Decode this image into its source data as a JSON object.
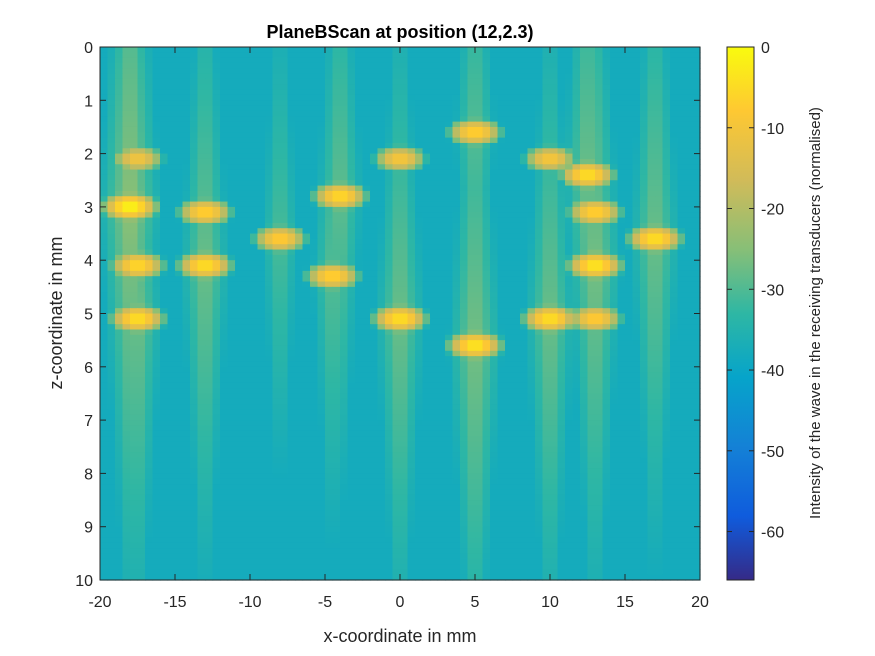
{
  "chart_data": {
    "type": "heatmap",
    "title": "PlaneBScan at position (12,2.3)",
    "xlabel": "x-coordinate in mm",
    "ylabel": "z-coordinate in mm",
    "colorbar_label": "Intensity of the wave in the receiving transducers (normalised)",
    "xlim": [
      -20,
      20
    ],
    "ylim": [
      0,
      10
    ],
    "y_direction": "reversed",
    "clim": [
      -66,
      0
    ],
    "colormap": "parula",
    "x_ticks": [
      -20,
      -15,
      -10,
      -5,
      0,
      5,
      10,
      15,
      20
    ],
    "y_ticks": [
      0,
      1,
      2,
      3,
      4,
      5,
      6,
      7,
      8,
      9,
      10
    ],
    "colorbar_ticks": [
      0,
      -10,
      -20,
      -30,
      -40,
      -50,
      -60
    ],
    "background_level": -38,
    "bright_spots": [
      {
        "x": -17.5,
        "z": 2.1,
        "value": -10
      },
      {
        "x": -18,
        "z": 3.0,
        "value": -1
      },
      {
        "x": -13,
        "z": 3.1,
        "value": -6
      },
      {
        "x": -17.5,
        "z": 4.1,
        "value": -5
      },
      {
        "x": -13,
        "z": 4.1,
        "value": -4
      },
      {
        "x": -17.5,
        "z": 5.1,
        "value": -4
      },
      {
        "x": -8,
        "z": 3.6,
        "value": -7
      },
      {
        "x": -4,
        "z": 2.8,
        "value": -5
      },
      {
        "x": -4.5,
        "z": 4.3,
        "value": -6
      },
      {
        "x": 0,
        "z": 2.1,
        "value": -9
      },
      {
        "x": 0,
        "z": 5.1,
        "value": -4
      },
      {
        "x": 5,
        "z": 1.6,
        "value": -6
      },
      {
        "x": 5,
        "z": 5.6,
        "value": -3
      },
      {
        "x": 10,
        "z": 2.1,
        "value": -9
      },
      {
        "x": 12.5,
        "z": 2.4,
        "value": -4
      },
      {
        "x": 13,
        "z": 3.1,
        "value": -6
      },
      {
        "x": 17,
        "z": 3.6,
        "value": -4
      },
      {
        "x": 13,
        "z": 4.1,
        "value": -3
      },
      {
        "x": 10,
        "z": 5.1,
        "value": -4
      },
      {
        "x": 13,
        "z": 5.1,
        "value": -7
      }
    ]
  }
}
